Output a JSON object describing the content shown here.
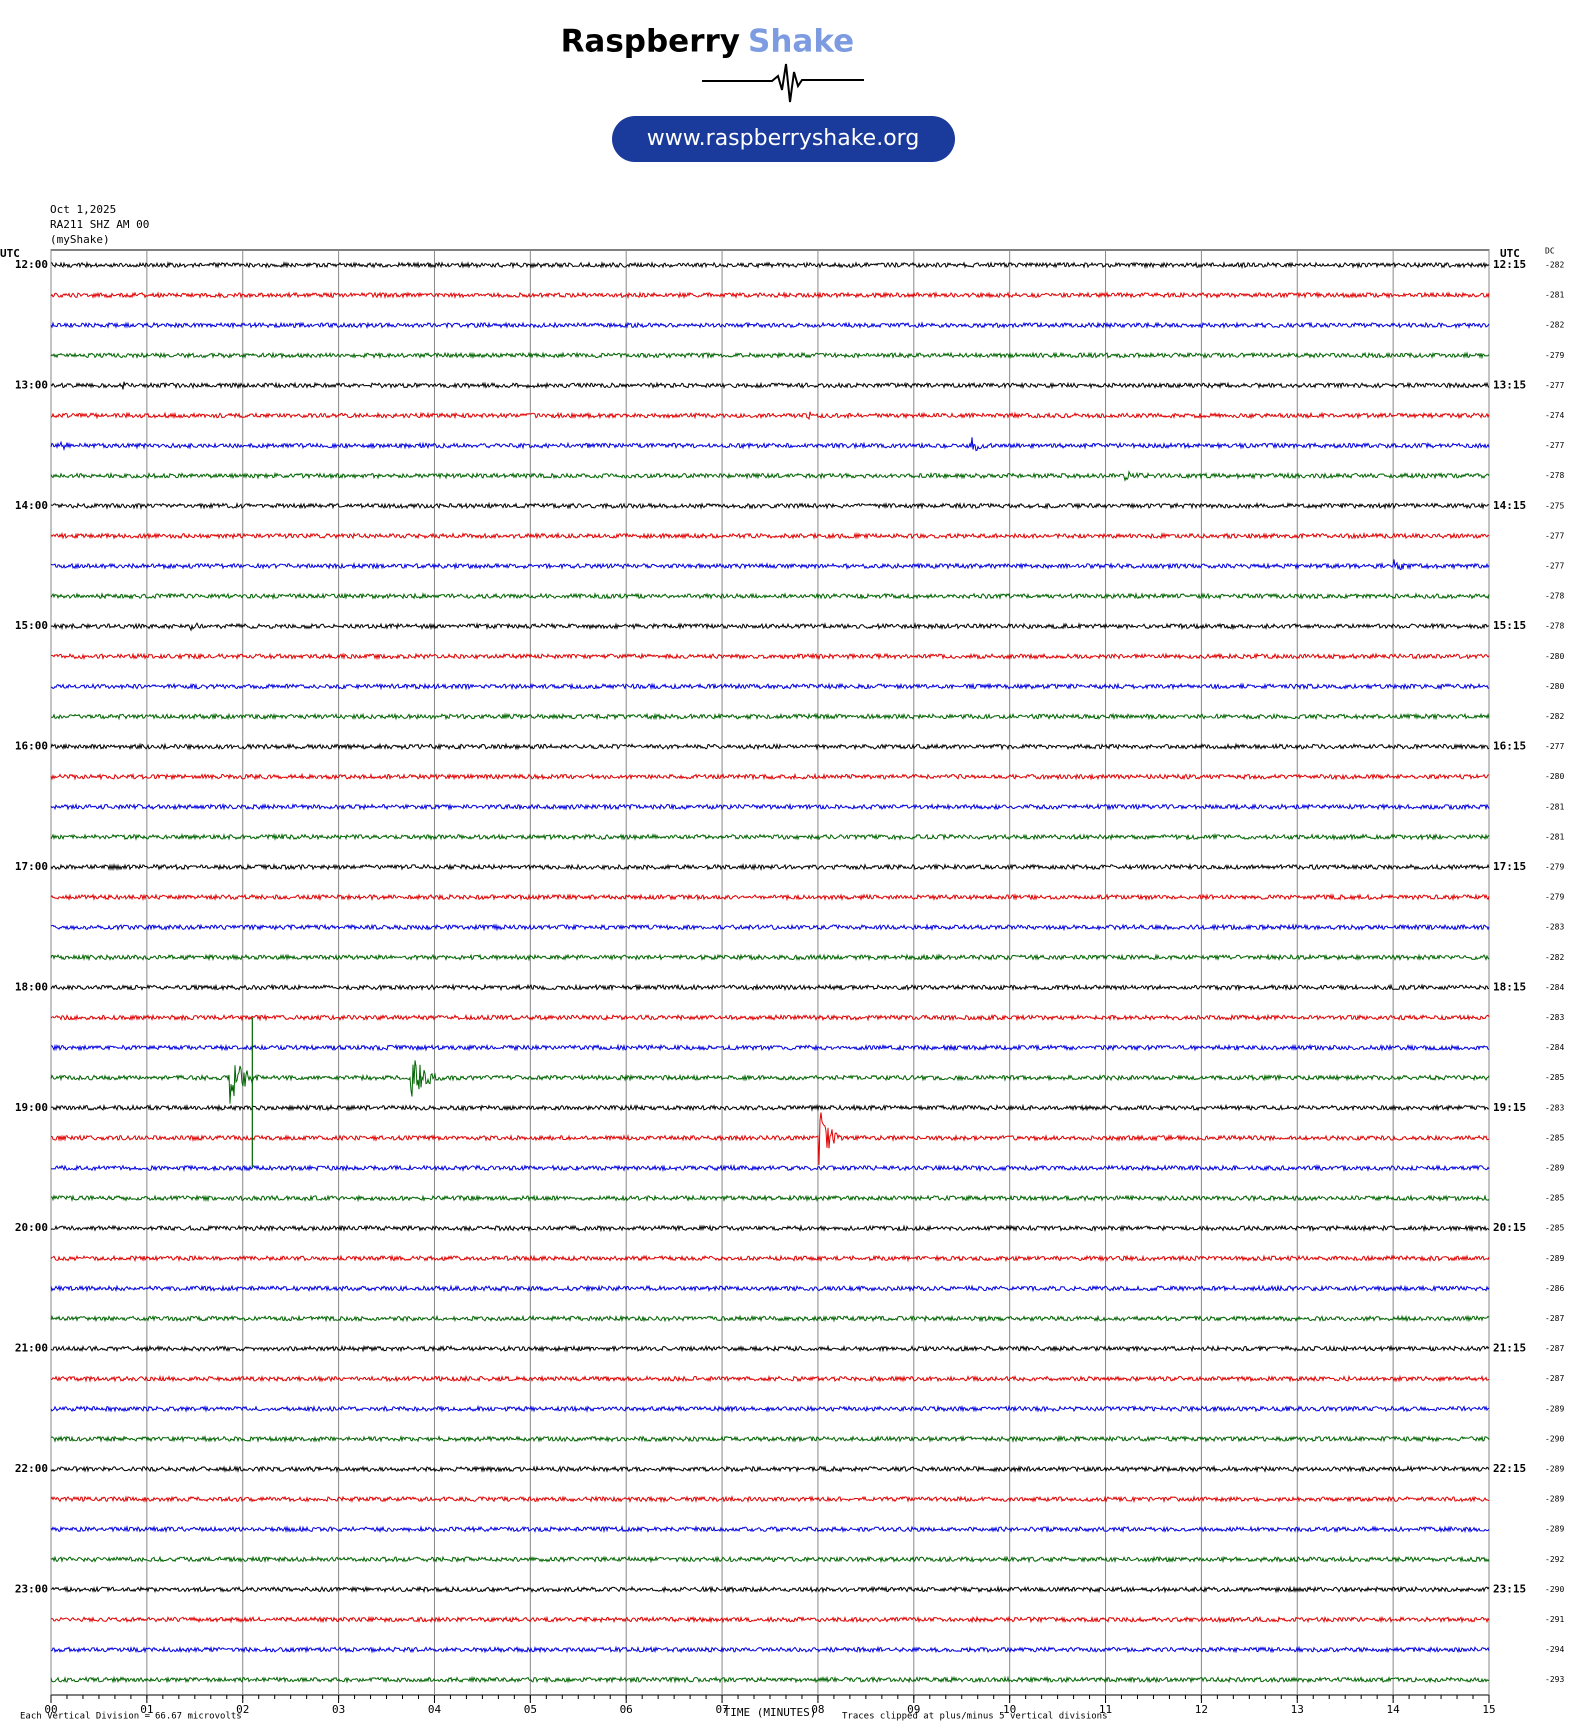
{
  "header": {
    "brand": "Raspberry",
    "brand_accent": "Shake",
    "url": "www.raspberryshake.org"
  },
  "chart_data": {
    "type": "helicorder",
    "date": "Oct 1,2025",
    "station": "RA211 SHZ AM 00",
    "source": "(myShake)",
    "left_axis_title": "UTC",
    "right_axis_title": "UTC",
    "dc_title": "DC",
    "left_labels": [
      "12:00",
      "13:00",
      "14:00",
      "15:00",
      "16:00",
      "17:00",
      "18:00",
      "19:00",
      "20:00",
      "21:00",
      "22:00",
      "23:00"
    ],
    "right_labels": [
      "12:15",
      "13:15",
      "14:15",
      "15:15",
      "16:15",
      "17:15",
      "18:15",
      "19:15",
      "20:15",
      "21:15",
      "22:15",
      "23:15"
    ],
    "dc_values": [
      -282,
      -281,
      -282,
      -279,
      -277,
      -274,
      -277,
      -278,
      -275,
      -277,
      -277,
      -278,
      -278,
      -280,
      -280,
      -282,
      -277,
      -280,
      -281,
      -281,
      -279,
      -279,
      -283,
      -282,
      -284,
      -283,
      -284,
      -285,
      -283,
      -285,
      -289,
      -285,
      -285,
      -289,
      -286,
      -287,
      -287,
      -287,
      -289,
      -290,
      -289,
      -289,
      -289,
      -292,
      -290,
      -291,
      -294,
      -293
    ],
    "trace_colors": [
      "#000000",
      "#e00000",
      "#0000e0",
      "#006400"
    ],
    "xlim": [
      0,
      15
    ],
    "xticks": [
      {
        "value": 0,
        "label": "00"
      },
      {
        "value": 1,
        "label": "01"
      },
      {
        "value": 2,
        "label": "02"
      },
      {
        "value": 3,
        "label": "03"
      },
      {
        "value": 4,
        "label": "04"
      },
      {
        "value": 5,
        "label": "05"
      },
      {
        "value": 6,
        "label": "06"
      },
      {
        "value": 7,
        "label": "07"
      },
      {
        "value": 8,
        "label": "08"
      },
      {
        "value": 9,
        "label": "09"
      },
      10,
      11,
      12,
      13,
      14,
      15
    ],
    "xlabel": "TIME (MINUTES)",
    "footer_division": "Each Vertical Division =",
    "footer_scale": "66.67 microvolts",
    "footer_clip": "Traces clipped at plus/minus 5 vertical divisions",
    "grid": true
  }
}
